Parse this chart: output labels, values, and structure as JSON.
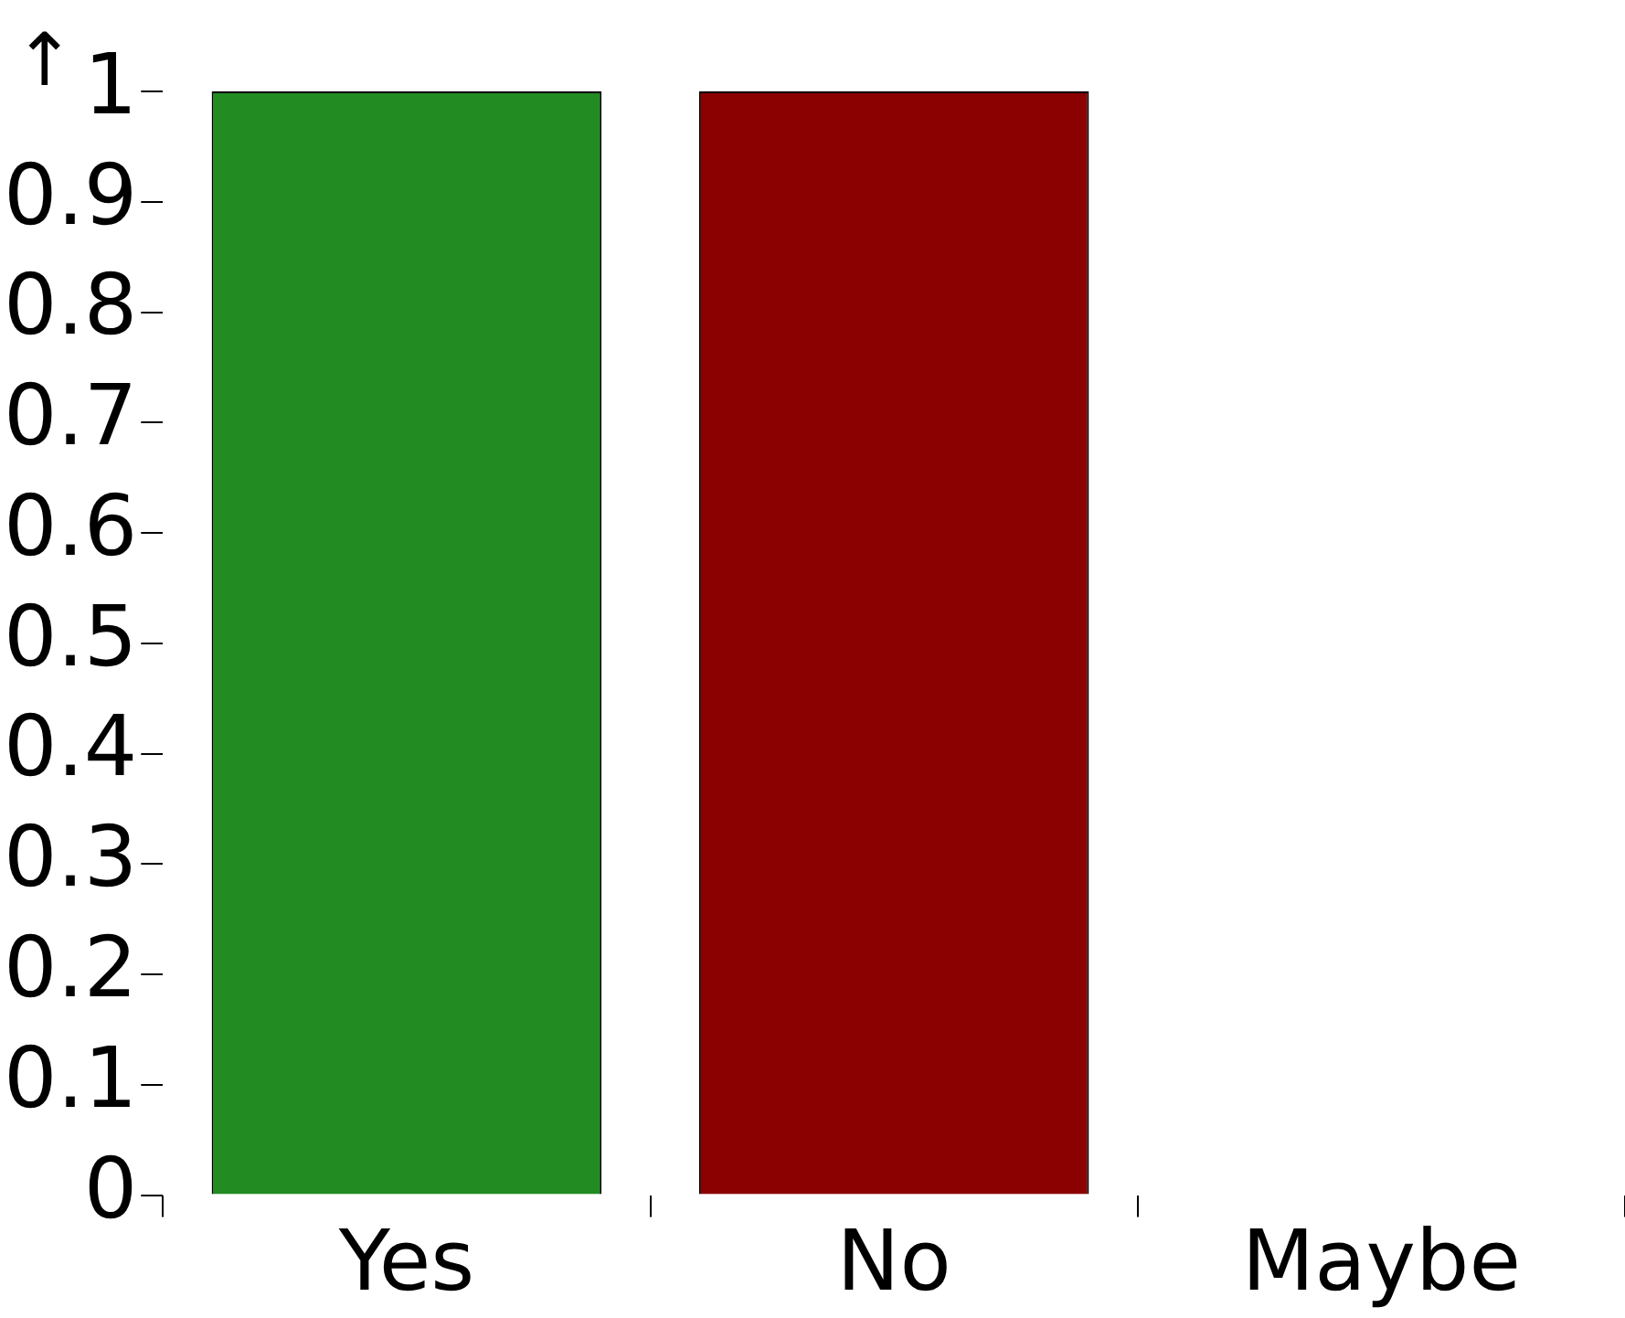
{
  "chart_data": {
    "type": "bar",
    "ylabel": "↑",
    "categories": [
      "Yes",
      "No",
      "Maybe"
    ],
    "values": [
      1,
      1,
      0
    ],
    "colors": [
      "#228b22",
      "#8b0000",
      "#1f77b4"
    ],
    "ylim": [
      0,
      1
    ],
    "yticks": [
      0,
      0.1,
      0.2,
      0.3,
      0.4,
      0.5,
      0.6,
      0.7,
      0.8,
      0.9,
      1
    ],
    "grid": false,
    "legend": false
  }
}
